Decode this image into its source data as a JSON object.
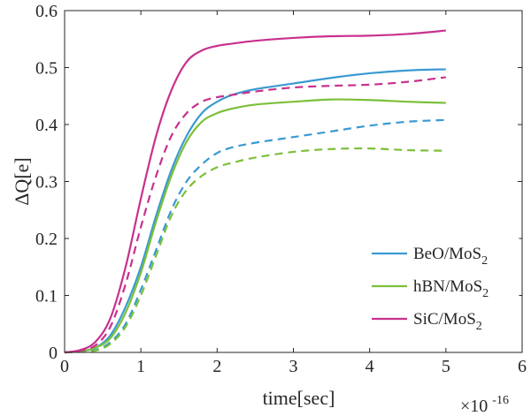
{
  "chart_data": {
    "type": "line",
    "xlabel": "time[sec]",
    "ylabel": "ΔQ[e]",
    "x_exponent_label": "×10",
    "x_exponent_power": "-16",
    "xlim": [
      0,
      6
    ],
    "ylim": [
      0,
      0.6
    ],
    "x_ticks": [
      "0",
      "1",
      "2",
      "3",
      "4",
      "5",
      "6"
    ],
    "y_ticks": [
      "0",
      "0.1",
      "0.2",
      "0.3",
      "0.4",
      "0.5",
      "0.6"
    ],
    "grid": false,
    "legend_position": "right",
    "legend": [
      {
        "base": "BeO/MoS",
        "sub": "2",
        "color": "#3a9ad1"
      },
      {
        "base": "hBN/MoS",
        "sub": "2",
        "color": "#7cbf3a"
      },
      {
        "base": "SiC/MoS",
        "sub": "2",
        "color": "#c8318d"
      }
    ],
    "series": [
      {
        "material": "BeO/MoS2",
        "style": "solid",
        "color": "#3a9ad1",
        "x": [
          0,
          0.2,
          0.4,
          0.6,
          0.8,
          1.0,
          1.2,
          1.4,
          1.6,
          1.8,
          2.0,
          2.2,
          2.5,
          3.0,
          3.5,
          4.0,
          4.5,
          5.0
        ],
        "y": [
          0,
          0.002,
          0.008,
          0.03,
          0.08,
          0.15,
          0.24,
          0.32,
          0.38,
          0.42,
          0.44,
          0.452,
          0.462,
          0.472,
          0.482,
          0.49,
          0.495,
          0.497
        ]
      },
      {
        "material": "hBN/MoS2",
        "style": "solid",
        "color": "#7cbf3a",
        "x": [
          0,
          0.2,
          0.4,
          0.6,
          0.8,
          1.0,
          1.2,
          1.4,
          1.6,
          1.8,
          2.0,
          2.2,
          2.5,
          3.0,
          3.5,
          4.0,
          4.5,
          5.0
        ],
        "y": [
          0,
          0.002,
          0.008,
          0.025,
          0.07,
          0.14,
          0.23,
          0.31,
          0.37,
          0.405,
          0.42,
          0.428,
          0.435,
          0.44,
          0.444,
          0.443,
          0.44,
          0.438
        ]
      },
      {
        "material": "SiC/MoS2",
        "style": "solid",
        "color": "#c8318d",
        "x": [
          0,
          0.2,
          0.4,
          0.6,
          0.8,
          1.0,
          1.2,
          1.4,
          1.6,
          1.8,
          2.0,
          2.2,
          2.5,
          3.0,
          3.5,
          4.0,
          4.5,
          5.0
        ],
        "y": [
          0,
          0.004,
          0.018,
          0.06,
          0.15,
          0.27,
          0.38,
          0.46,
          0.51,
          0.53,
          0.538,
          0.542,
          0.547,
          0.552,
          0.555,
          0.556,
          0.559,
          0.565
        ]
      },
      {
        "material": "BeO/MoS2",
        "style": "dashed",
        "color": "#3a9ad1",
        "x": [
          0,
          0.2,
          0.4,
          0.6,
          0.8,
          1.0,
          1.2,
          1.4,
          1.6,
          1.8,
          2.0,
          2.2,
          2.5,
          3.0,
          3.5,
          4.0,
          4.5,
          5.0
        ],
        "y": [
          0,
          0.001,
          0.004,
          0.018,
          0.05,
          0.11,
          0.18,
          0.25,
          0.3,
          0.33,
          0.35,
          0.36,
          0.368,
          0.378,
          0.388,
          0.398,
          0.405,
          0.408
        ]
      },
      {
        "material": "hBN/MoS2",
        "style": "dashed",
        "color": "#7cbf3a",
        "x": [
          0,
          0.2,
          0.4,
          0.6,
          0.8,
          1.0,
          1.2,
          1.4,
          1.6,
          1.8,
          2.0,
          2.2,
          2.5,
          3.0,
          3.5,
          4.0,
          4.5,
          5.0
        ],
        "y": [
          0,
          0.001,
          0.003,
          0.015,
          0.045,
          0.1,
          0.17,
          0.24,
          0.285,
          0.31,
          0.325,
          0.333,
          0.342,
          0.352,
          0.357,
          0.358,
          0.355,
          0.354
        ]
      },
      {
        "material": "SiC/MoS2",
        "style": "dashed",
        "color": "#c8318d",
        "x": [
          0,
          0.2,
          0.4,
          0.6,
          0.8,
          1.0,
          1.2,
          1.4,
          1.6,
          1.8,
          2.0,
          2.2,
          2.5,
          3.0,
          3.5,
          4.0,
          4.5,
          5.0
        ],
        "y": [
          0,
          0.003,
          0.012,
          0.045,
          0.12,
          0.22,
          0.31,
          0.38,
          0.42,
          0.44,
          0.448,
          0.452,
          0.458,
          0.465,
          0.468,
          0.47,
          0.475,
          0.483
        ]
      }
    ]
  }
}
